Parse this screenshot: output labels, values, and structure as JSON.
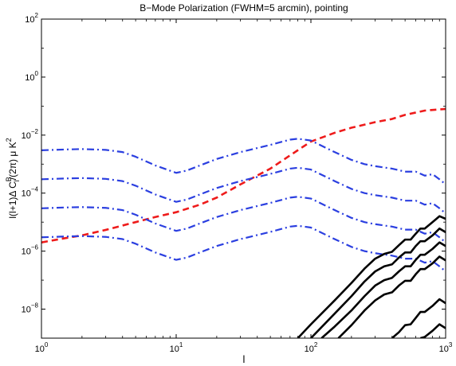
{
  "chart_data": {
    "type": "line",
    "title": "B−Mode Polarization (FWHM=5 arcmin), pointing",
    "xlabel": "l",
    "ylabel": {
      "base": "l(l+1)Δ C",
      "sup": "B",
      "sub": "l",
      "rest": "/(2π) μ K",
      "exp": "2"
    },
    "xscale": "log",
    "yscale": "log",
    "xlim": [
      1,
      1000
    ],
    "ylim": [
      1e-09,
      100
    ],
    "x_ticks": [
      {
        "value": 1,
        "base": "10",
        "exp": "0"
      },
      {
        "value": 10,
        "base": "10",
        "exp": "1"
      },
      {
        "value": 100,
        "base": "10",
        "exp": "2"
      },
      {
        "value": 1000,
        "base": "10",
        "exp": "3"
      }
    ],
    "y_ticks": [
      {
        "value": 1e-08,
        "base": "10",
        "exp": "−8"
      },
      {
        "value": 1e-06,
        "base": "10",
        "exp": "−6"
      },
      {
        "value": 0.0001,
        "base": "10",
        "exp": "−4"
      },
      {
        "value": 0.01,
        "base": "10",
        "exp": "−2"
      },
      {
        "value": 1,
        "base": "10",
        "exp": "0"
      },
      {
        "value": 100,
        "base": "10",
        "exp": "2"
      }
    ],
    "grid": false,
    "colors": {
      "red": "#ee1b1b",
      "blue": "#2b3fe0",
      "black": "#000000"
    },
    "series": [
      {
        "style": "dashed",
        "color": "red",
        "x": [
          1,
          1.5,
          2,
          3,
          5,
          7,
          10,
          15,
          20,
          30,
          50,
          70,
          100,
          150,
          200,
          300,
          400,
          500,
          700,
          1000
        ],
        "y": [
          2e-06,
          2.8e-06,
          3.5e-06,
          5.4e-06,
          1e-05,
          1.5e-05,
          2.2e-05,
          4e-05,
          7e-05,
          0.0002,
          0.0007,
          0.002,
          0.006,
          0.012,
          0.018,
          0.028,
          0.036,
          0.05,
          0.07,
          0.08
        ]
      },
      {
        "style": "dashdot",
        "color": "blue",
        "x": [
          1,
          1.5,
          2,
          3,
          4,
          5,
          7,
          10,
          12,
          15,
          20,
          30,
          50,
          70,
          80,
          100,
          150,
          200,
          250,
          300,
          400,
          500,
          600,
          700,
          800,
          900,
          1000
        ],
        "y": [
          0.003,
          0.0032,
          0.0033,
          0.0031,
          0.0026,
          0.0018,
          0.0009,
          0.0005,
          0.0006,
          0.0009,
          0.0015,
          0.0026,
          0.0046,
          0.007,
          0.0075,
          0.0065,
          0.0026,
          0.0014,
          0.001,
          0.00085,
          0.0007,
          0.00055,
          0.00055,
          0.0004,
          0.00045,
          0.0003,
          0.0002
        ]
      },
      {
        "style": "dashdot",
        "color": "blue",
        "x": [
          1,
          1.5,
          2,
          3,
          4,
          5,
          7,
          10,
          12,
          15,
          20,
          30,
          50,
          70,
          80,
          100,
          150,
          200,
          250,
          300,
          400,
          500,
          600,
          700,
          800,
          900,
          1000
        ],
        "y": [
          0.0003,
          0.00032,
          0.00033,
          0.00031,
          0.00026,
          0.00018,
          9e-05,
          5e-05,
          6e-05,
          9e-05,
          0.00015,
          0.00026,
          0.00046,
          0.0007,
          0.00075,
          0.00065,
          0.00026,
          0.00014,
          0.0001,
          8.5e-05,
          7e-05,
          5.5e-05,
          5.5e-05,
          4e-05,
          4.5e-05,
          3e-05,
          2e-05
        ]
      },
      {
        "style": "dashdot",
        "color": "blue",
        "x": [
          1,
          1.5,
          2,
          3,
          4,
          5,
          7,
          10,
          12,
          15,
          20,
          30,
          50,
          70,
          80,
          100,
          150,
          200,
          250,
          300,
          400,
          500,
          600,
          700,
          800,
          900,
          1000
        ],
        "y": [
          3e-05,
          3.2e-05,
          3.3e-05,
          3.1e-05,
          2.6e-05,
          1.8e-05,
          9e-06,
          5e-06,
          6e-06,
          9e-06,
          1.5e-05,
          2.6e-05,
          4.6e-05,
          7e-05,
          7.5e-05,
          6.5e-05,
          2.6e-05,
          1.4e-05,
          1e-05,
          8.5e-06,
          7e-06,
          5.5e-06,
          5.5e-06,
          4e-06,
          4.5e-06,
          3e-06,
          2e-06
        ]
      },
      {
        "style": "dashdot",
        "color": "blue",
        "x": [
          1,
          1.5,
          2,
          3,
          4,
          5,
          7,
          10,
          12,
          15,
          20,
          30,
          50,
          70,
          80,
          100,
          150,
          200,
          250,
          300,
          400,
          500,
          600,
          700,
          800,
          900,
          1000
        ],
        "y": [
          3e-06,
          3.2e-06,
          3.3e-06,
          3.1e-06,
          2.6e-06,
          1.8e-06,
          9e-07,
          5e-07,
          6e-07,
          9e-07,
          1.5e-06,
          2.6e-06,
          4.6e-06,
          7e-06,
          7.5e-06,
          6.5e-06,
          2.6e-06,
          1.4e-06,
          1e-06,
          8.5e-07,
          7e-07,
          5.5e-07,
          5.5e-07,
          4e-07,
          4.5e-07,
          3e-07,
          2e-07
        ]
      },
      {
        "style": "solid",
        "color": "black",
        "x": [
          80,
          100,
          150,
          200,
          250,
          300,
          350,
          400,
          450,
          500,
          550,
          600,
          650,
          700,
          800,
          900,
          1000
        ],
        "y": [
          1e-09,
          3e-09,
          2e-08,
          8e-08,
          2.5e-07,
          5.5e-07,
          8e-07,
          9.5e-07,
          1.6e-06,
          2.5e-06,
          2.5e-06,
          4e-06,
          6e-06,
          6e-06,
          1e-05,
          1.6e-05,
          1.3e-05
        ]
      },
      {
        "style": "solid",
        "color": "black",
        "x": [
          100,
          150,
          200,
          250,
          300,
          350,
          400,
          450,
          500,
          550,
          600,
          650,
          700,
          800,
          900,
          1000
        ],
        "y": [
          1e-09,
          7e-09,
          2.8e-08,
          9e-08,
          2e-07,
          3e-07,
          3.5e-07,
          6e-07,
          9e-07,
          9e-07,
          1.5e-06,
          2.2e-06,
          2.2e-06,
          3.5e-06,
          6e-06,
          4.5e-06
        ]
      },
      {
        "style": "solid",
        "color": "black",
        "x": [
          120,
          150,
          200,
          250,
          300,
          350,
          400,
          450,
          500,
          550,
          600,
          650,
          700,
          800,
          900,
          1000
        ],
        "y": [
          1e-09,
          2.5e-09,
          9e-09,
          2.8e-08,
          6.5e-08,
          1e-07,
          1.2e-07,
          2e-07,
          3e-07,
          3e-07,
          5e-07,
          7.5e-07,
          7.5e-07,
          1.2e-06,
          2e-06,
          1.5e-06
        ]
      },
      {
        "style": "solid",
        "color": "black",
        "x": [
          160,
          200,
          250,
          300,
          350,
          400,
          450,
          500,
          550,
          600,
          650,
          700,
          800,
          900,
          1000
        ],
        "y": [
          1e-09,
          2.8e-09,
          9e-09,
          2e-08,
          3.2e-08,
          3.8e-08,
          6.5e-08,
          9.5e-08,
          9.5e-08,
          1.6e-07,
          2.4e-07,
          2.4e-07,
          3.8e-07,
          6.5e-07,
          4.8e-07
        ]
      },
      {
        "style": "solid",
        "color": "black",
        "x": [
          400,
          450,
          500,
          550,
          600,
          650,
          700,
          800,
          900,
          1000
        ],
        "y": [
          1e-09,
          1.6e-09,
          2.8e-09,
          3e-09,
          5e-09,
          8e-09,
          8e-09,
          1.3e-08,
          2.2e-08,
          1.6e-08
        ]
      },
      {
        "style": "solid",
        "color": "black",
        "x": [
          650,
          700,
          800,
          900,
          1000
        ],
        "y": [
          1e-09,
          1.1e-09,
          1.8e-09,
          3e-09,
          2.2e-09
        ]
      }
    ]
  }
}
